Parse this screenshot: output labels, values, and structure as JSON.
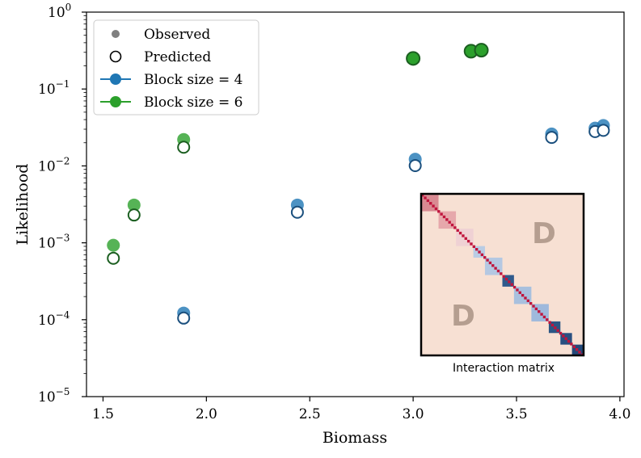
{
  "chart_data": {
    "type": "scatter",
    "title": "",
    "xlabel": "Biomass",
    "ylabel": "Likelihood",
    "xlim": [
      1.42,
      4.02
    ],
    "ylim_log10": [
      -5,
      0
    ],
    "x_scale": "linear",
    "y_scale": "log",
    "x_ticks": [
      1.5,
      2.0,
      2.5,
      3.0,
      3.5,
      4.0
    ],
    "x_tick_labels": [
      "1.5",
      "2.0",
      "2.5",
      "3.0",
      "3.5",
      "4.0"
    ],
    "y_ticks_log10": [
      0,
      -1,
      -2,
      -3,
      -4,
      -5
    ],
    "y_tick_labels": [
      {
        "base": "10",
        "exp": "0"
      },
      {
        "base": "10",
        "exp": "−1"
      },
      {
        "base": "10",
        "exp": "−2"
      },
      {
        "base": "10",
        "exp": "−3"
      },
      {
        "base": "10",
        "exp": "−4"
      },
      {
        "base": "10",
        "exp": "−5"
      }
    ],
    "legend_position": "top-left",
    "legend": [
      {
        "label": "Observed",
        "marker": "filled-circle",
        "color": "#808080"
      },
      {
        "label": "Predicted",
        "marker": "open-circle",
        "color": "#000000"
      },
      {
        "label": "Block size = 4",
        "marker": "line-circle",
        "color": "#1f77b4"
      },
      {
        "label": "Block size = 6",
        "marker": "line-circle",
        "color": "#2ca02c"
      }
    ],
    "series": [
      {
        "name": "Block size = 4",
        "color": "#1f77b4",
        "edge_color": "#1a4f7d",
        "observed": [
          {
            "x": 1.89,
            "y": 0.000122
          },
          {
            "x": 2.44,
            "y": 0.0031
          },
          {
            "x": 3.01,
            "y": 0.0122
          },
          {
            "x": 3.67,
            "y": 0.026
          },
          {
            "x": 3.88,
            "y": 0.031
          },
          {
            "x": 3.92,
            "y": 0.0335
          }
        ],
        "predicted": [
          {
            "x": 1.89,
            "y": 0.000105
          },
          {
            "x": 2.44,
            "y": 0.0025
          },
          {
            "x": 3.01,
            "y": 0.0101
          },
          {
            "x": 3.67,
            "y": 0.0235
          },
          {
            "x": 3.88,
            "y": 0.028
          },
          {
            "x": 3.92,
            "y": 0.029
          }
        ]
      },
      {
        "name": "Block size = 6",
        "color": "#2ca02c",
        "edge_color": "#1b5e20",
        "observed": [
          {
            "x": 1.55,
            "y": 0.00093
          },
          {
            "x": 1.65,
            "y": 0.0031
          },
          {
            "x": 1.89,
            "y": 0.022
          },
          {
            "x": 3.0,
            "y": 0.25
          },
          {
            "x": 3.28,
            "y": 0.31
          },
          {
            "x": 3.33,
            "y": 0.32
          }
        ],
        "predicted": [
          {
            "x": 1.55,
            "y": 0.00063
          },
          {
            "x": 1.65,
            "y": 0.0023
          },
          {
            "x": 1.89,
            "y": 0.0175
          },
          {
            "x": 3.0,
            "y": 0.245
          },
          {
            "x": 3.28,
            "y": 0.305
          },
          {
            "x": 3.33,
            "y": 0.315
          }
        ]
      }
    ],
    "inset": {
      "caption": "Interaction matrix",
      "letters": [
        "D",
        "D"
      ],
      "background_color": "#f7e0d3",
      "diagonal_color": "#c0143c",
      "blocks": [
        {
          "size": 3,
          "color": "#d98a92"
        },
        {
          "size": 3,
          "color": "#e6a8ab"
        },
        {
          "size": 3,
          "color": "#efd1d4"
        },
        {
          "size": 2,
          "color": "#b9cce4"
        },
        {
          "size": 3,
          "color": "#b4c8e2"
        },
        {
          "size": 2,
          "color": "#2f5a8c"
        },
        {
          "size": 3,
          "color": "#a8c0de"
        },
        {
          "size": 3,
          "color": "#9fb9dc"
        },
        {
          "size": 2,
          "color": "#2b5684"
        },
        {
          "size": 2,
          "color": "#284f80"
        },
        {
          "size": 2,
          "color": "#23497a"
        }
      ]
    }
  }
}
